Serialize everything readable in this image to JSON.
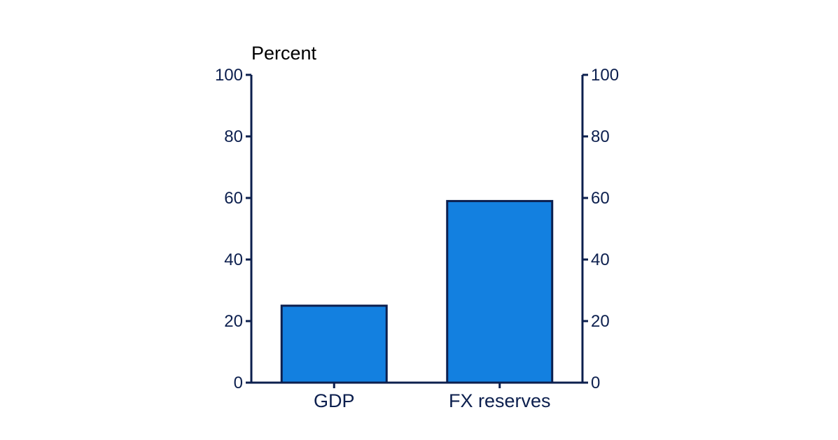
{
  "chart_data": {
    "type": "bar",
    "title": "",
    "ylabel": "Percent",
    "xlabel": "",
    "categories": [
      "GDP",
      "FX reserves"
    ],
    "values": [
      25,
      59
    ],
    "ylim": [
      0,
      100
    ],
    "yticks": [
      0,
      20,
      40,
      60,
      80,
      100
    ],
    "secondary_y_axis": true,
    "grid": false,
    "legend": "none",
    "colors": {
      "bar": "#1380e0",
      "axis": "#0c1f4e",
      "unit_text": "#000000"
    }
  }
}
